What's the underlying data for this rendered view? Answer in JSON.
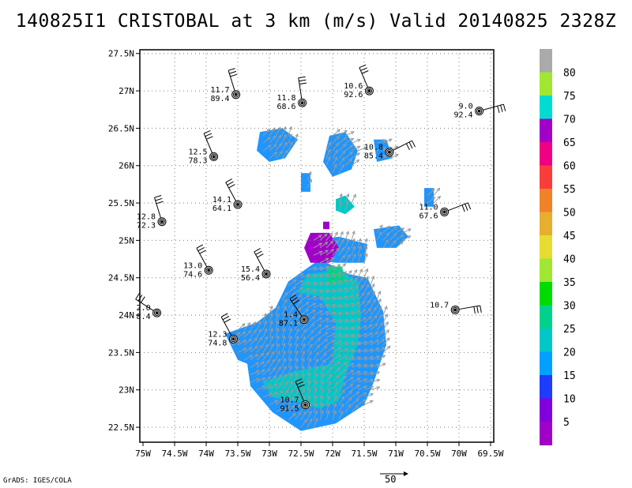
{
  "title": "140825I1 CRISTOBAL at 3 km (m/s) Valid 20140825 2328Z",
  "credit": "GrADS: IGES/COLA",
  "reference_vector_label": "50",
  "axes": {
    "x_range": [
      -75.05,
      -69.45
    ],
    "y_range": [
      22.3,
      27.55
    ],
    "x_ticks": [
      {
        "value": -75.0,
        "label": "75W"
      },
      {
        "value": -74.5,
        "label": "74.5W"
      },
      {
        "value": -74.0,
        "label": "74W"
      },
      {
        "value": -73.5,
        "label": "73.5W"
      },
      {
        "value": -73.0,
        "label": "73W"
      },
      {
        "value": -72.5,
        "label": "72.5W"
      },
      {
        "value": -72.0,
        "label": "72W"
      },
      {
        "value": -71.5,
        "label": "71.5W"
      },
      {
        "value": -71.0,
        "label": "71W"
      },
      {
        "value": -70.5,
        "label": "70.5W"
      },
      {
        "value": -70.0,
        "label": "70W"
      },
      {
        "value": -69.5,
        "label": "69.5W"
      }
    ],
    "y_ticks": [
      {
        "value": 22.5,
        "label": "22.5N"
      },
      {
        "value": 23.0,
        "label": "23N"
      },
      {
        "value": 23.5,
        "label": "23.5N"
      },
      {
        "value": 24.0,
        "label": "24N"
      },
      {
        "value": 24.5,
        "label": "24.5N"
      },
      {
        "value": 25.0,
        "label": "25N"
      },
      {
        "value": 25.5,
        "label": "25.5N"
      },
      {
        "value": 26.0,
        "label": "26N"
      },
      {
        "value": 26.5,
        "label": "26.5N"
      },
      {
        "value": 27.0,
        "label": "27N"
      },
      {
        "value": 27.5,
        "label": "27.5N"
      }
    ],
    "grid": true
  },
  "colorbar": [
    {
      "label": "",
      "color": "#aaaaaa"
    },
    {
      "label": "80",
      "color": "#a0e632"
    },
    {
      "label": "75",
      "color": "#00dcd2"
    },
    {
      "label": "70",
      "color": "#a000c8"
    },
    {
      "label": "65",
      "color": "#f00082"
    },
    {
      "label": "60",
      "color": "#fa3c3c"
    },
    {
      "label": "55",
      "color": "#f08228"
    },
    {
      "label": "50",
      "color": "#e6af2d"
    },
    {
      "label": "45",
      "color": "#e6dc32"
    },
    {
      "label": "40",
      "color": "#a0e632"
    },
    {
      "label": "35",
      "color": "#00dc00"
    },
    {
      "label": "30",
      "color": "#00d28c"
    },
    {
      "label": "25",
      "color": "#00c8c8"
    },
    {
      "label": "20",
      "color": "#00a0ff"
    },
    {
      "label": "15",
      "color": "#1e3cff"
    },
    {
      "label": "10",
      "color": "#8200dc"
    },
    {
      "label": "5",
      "color": "#a000c8"
    }
  ],
  "chart_data": {
    "type": "heatmap",
    "field": "wind speed at 3 km (m/s)",
    "shaded_regions": [
      {
        "level": 15,
        "color": "#1e96ff",
        "polygon": [
          [
            -73.7,
            23.75
          ],
          [
            -73.2,
            23.9
          ],
          [
            -72.9,
            24.1
          ],
          [
            -72.7,
            24.45
          ],
          [
            -72.2,
            24.75
          ],
          [
            -71.75,
            24.55
          ],
          [
            -71.45,
            24.5
          ],
          [
            -71.2,
            24.05
          ],
          [
            -71.15,
            23.6
          ],
          [
            -71.35,
            23.1
          ],
          [
            -71.5,
            22.8
          ],
          [
            -71.95,
            22.55
          ],
          [
            -72.5,
            22.45
          ],
          [
            -72.95,
            22.7
          ],
          [
            -73.3,
            23.05
          ],
          [
            -73.35,
            23.35
          ],
          [
            -73.5,
            23.4
          ]
        ]
      },
      {
        "level": 15,
        "color": "#1e96ff",
        "polygon": [
          [
            -73.15,
            26.45
          ],
          [
            -72.8,
            26.5
          ],
          [
            -72.55,
            26.35
          ],
          [
            -72.75,
            26.1
          ],
          [
            -73.0,
            26.05
          ],
          [
            -73.2,
            26.2
          ]
        ]
      },
      {
        "level": 15,
        "color": "#1e96ff",
        "polygon": [
          [
            -72.05,
            26.4
          ],
          [
            -71.8,
            26.45
          ],
          [
            -71.6,
            26.2
          ],
          [
            -71.7,
            25.95
          ],
          [
            -72.0,
            25.85
          ],
          [
            -72.15,
            26.05
          ]
        ]
      },
      {
        "level": 15,
        "color": "#1e96ff",
        "polygon": [
          [
            -72.35,
            25.0
          ],
          [
            -71.9,
            25.05
          ],
          [
            -71.45,
            24.95
          ],
          [
            -71.5,
            24.7
          ],
          [
            -71.95,
            24.7
          ],
          [
            -72.35,
            24.75
          ]
        ]
      },
      {
        "level": 15,
        "color": "#1e96ff",
        "polygon": [
          [
            -71.35,
            25.15
          ],
          [
            -70.95,
            25.2
          ],
          [
            -70.8,
            25.05
          ],
          [
            -71.0,
            24.9
          ],
          [
            -71.3,
            24.9
          ]
        ]
      },
      {
        "level": 15,
        "color": "#1e96ff",
        "polygon": [
          [
            -72.5,
            25.9
          ],
          [
            -72.35,
            25.9
          ],
          [
            -72.35,
            25.65
          ],
          [
            -72.5,
            25.65
          ]
        ]
      },
      {
        "level": 15,
        "color": "#1e96ff",
        "polygon": [
          [
            -71.35,
            26.35
          ],
          [
            -71.15,
            26.35
          ],
          [
            -71.05,
            26.1
          ],
          [
            -71.3,
            26.05
          ]
        ]
      },
      {
        "level": 15,
        "color": "#1e96ff",
        "polygon": [
          [
            -70.55,
            25.7
          ],
          [
            -70.4,
            25.7
          ],
          [
            -70.4,
            25.45
          ],
          [
            -70.55,
            25.45
          ]
        ]
      },
      {
        "level": 20,
        "color": "#00c8c8",
        "polygon": [
          [
            -72.4,
            24.55
          ],
          [
            -71.9,
            24.6
          ],
          [
            -71.6,
            24.45
          ],
          [
            -71.55,
            24.0
          ],
          [
            -71.6,
            23.6
          ],
          [
            -71.8,
            23.2
          ],
          [
            -71.9,
            22.85
          ],
          [
            -72.2,
            22.75
          ],
          [
            -72.6,
            22.85
          ],
          [
            -72.95,
            22.9
          ],
          [
            -73.1,
            23.1
          ],
          [
            -72.6,
            23.25
          ],
          [
            -72.0,
            23.35
          ],
          [
            -71.95,
            23.9
          ],
          [
            -72.2,
            24.25
          ],
          [
            -72.55,
            24.3
          ]
        ]
      },
      {
        "level": 20,
        "color": "#00c8c8",
        "polygon": [
          [
            -71.95,
            25.55
          ],
          [
            -71.8,
            25.6
          ],
          [
            -71.65,
            25.45
          ],
          [
            -71.8,
            25.35
          ],
          [
            -71.95,
            25.4
          ]
        ]
      },
      {
        "level": 25,
        "color": "#00d28c",
        "polygon": [
          [
            -72.1,
            24.65
          ],
          [
            -71.85,
            24.65
          ],
          [
            -71.8,
            24.45
          ],
          [
            -72.05,
            24.4
          ]
        ]
      },
      {
        "level": 70,
        "color": "#a000c8",
        "polygon": [
          [
            -72.35,
            25.1
          ],
          [
            -72.05,
            25.1
          ],
          [
            -71.9,
            24.9
          ],
          [
            -72.05,
            24.7
          ],
          [
            -72.35,
            24.7
          ],
          [
            -72.45,
            24.9
          ]
        ]
      },
      {
        "level": 70,
        "color": "#a000c8",
        "polygon": [
          [
            -72.15,
            25.25
          ],
          [
            -72.05,
            25.25
          ],
          [
            -72.05,
            25.15
          ],
          [
            -72.15,
            25.15
          ]
        ]
      }
    ],
    "stations": [
      {
        "lon": -73.53,
        "lat": 26.95,
        "speed": "11.7",
        "direction": "89.4"
      },
      {
        "lon": -72.48,
        "lat": 26.84,
        "speed": "11.8",
        "direction": "68.6"
      },
      {
        "lon": -71.42,
        "lat": 27.0,
        "speed": "10.6",
        "direction": "92.6"
      },
      {
        "lon": -69.68,
        "lat": 26.73,
        "speed": "9.0",
        "direction": "92.4"
      },
      {
        "lon": -73.88,
        "lat": 26.12,
        "speed": "12.5",
        "direction": "78.3"
      },
      {
        "lon": -71.1,
        "lat": 26.18,
        "speed": "10.8",
        "direction": "85.4"
      },
      {
        "lon": -73.5,
        "lat": 25.48,
        "speed": "14.1",
        "direction": "64.1"
      },
      {
        "lon": -74.7,
        "lat": 25.25,
        "speed": "12.8",
        "direction": "72.3"
      },
      {
        "lon": -70.23,
        "lat": 25.38,
        "speed": "11.0",
        "direction": "67.6"
      },
      {
        "lon": -73.96,
        "lat": 24.6,
        "speed": "13.0",
        "direction": "74.6"
      },
      {
        "lon": -73.05,
        "lat": 24.55,
        "speed": "15.4",
        "direction": "56.4"
      },
      {
        "lon": -74.78,
        "lat": 24.03,
        "speed": "2.0",
        "direction": "8.4"
      },
      {
        "lon": -72.45,
        "lat": 23.94,
        "speed": "1.4",
        "direction": "87.1"
      },
      {
        "lon": -70.06,
        "lat": 24.07,
        "speed": "10.7",
        "direction": ""
      },
      {
        "lon": -73.57,
        "lat": 23.68,
        "speed": "12.3",
        "direction": "74.8"
      },
      {
        "lon": -72.43,
        "lat": 22.8,
        "speed": "10.7",
        "direction": "91.5"
      }
    ]
  }
}
